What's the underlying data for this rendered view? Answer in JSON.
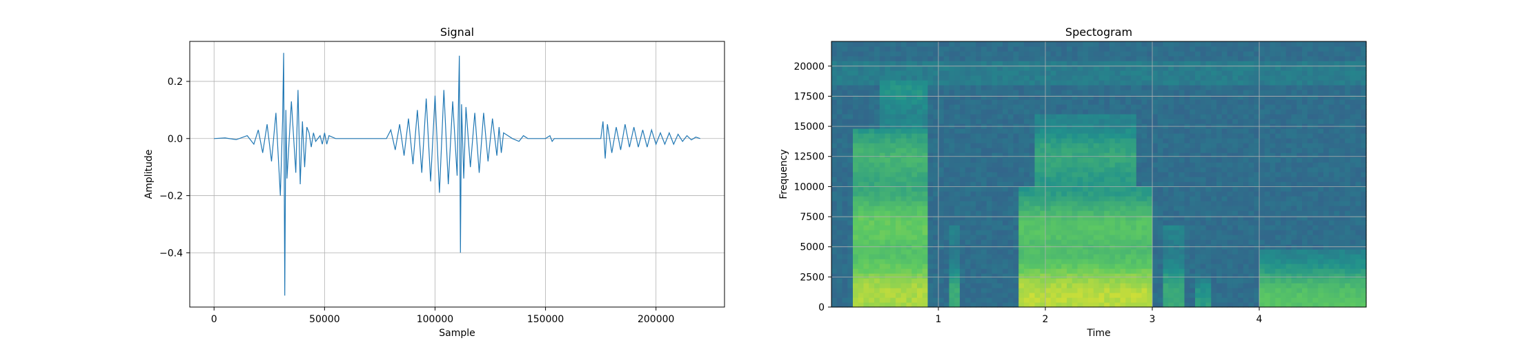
{
  "colors": {
    "signal": "#1f77b4",
    "grid": "#b0b0b0",
    "axes": "#000000"
  },
  "chart_data": [
    {
      "type": "line",
      "title": "Signal",
      "xlabel": "Sample",
      "ylabel": "Amplitude",
      "xlim": [
        -11000,
        231000
      ],
      "ylim": [
        -0.59,
        0.34
      ],
      "xticks": [
        0,
        50000,
        100000,
        150000,
        200000
      ],
      "xtick_labels": [
        "0",
        "50000",
        "100000",
        "150000",
        "200000"
      ],
      "yticks": [
        0.2,
        0.0,
        -0.2,
        -0.4
      ],
      "ytick_labels": [
        "0.2",
        "0.0",
        "−0.2",
        "−0.4"
      ],
      "grid": true,
      "series": [
        {
          "x": [
            0,
            5000,
            10000,
            15000,
            18000,
            20000,
            22000,
            24000,
            26000,
            28000,
            30000,
            31000,
            31500,
            32000,
            32500,
            33000,
            35000,
            37000,
            38000,
            39000,
            40000,
            41000,
            42000,
            43000,
            44000,
            45000,
            46000,
            47000,
            48000,
            49000,
            50000,
            51000,
            52000,
            55000,
            70000,
            78000,
            80000,
            82000,
            84000,
            86000,
            88000,
            90000,
            92000,
            94000,
            96000,
            98000,
            100000,
            102000,
            104000,
            106000,
            108000,
            110000,
            111000,
            111500,
            112000,
            113000,
            114000,
            116000,
            118000,
            120000,
            122000,
            124000,
            126000,
            128000,
            129000,
            130000,
            131000,
            135000,
            138000,
            140000,
            142000,
            150000,
            152000,
            153000,
            154000,
            160000,
            175000,
            176000,
            177000,
            178000,
            180000,
            182000,
            184000,
            186000,
            188000,
            190000,
            192000,
            194000,
            196000,
            198000,
            200000,
            202000,
            204000,
            206000,
            208000,
            210000,
            212000,
            214000,
            216000,
            218000,
            220000
          ],
          "y": [
            0.0,
            0.002,
            -0.004,
            0.01,
            -0.02,
            0.03,
            -0.05,
            0.05,
            -0.08,
            0.09,
            -0.2,
            0.06,
            0.3,
            -0.55,
            0.1,
            -0.14,
            0.13,
            -0.12,
            0.17,
            -0.16,
            0.06,
            -0.1,
            0.04,
            0.02,
            -0.03,
            0.02,
            -0.01,
            0.0,
            0.01,
            -0.02,
            0.02,
            -0.02,
            0.01,
            0.0,
            0.0,
            0.0,
            0.03,
            -0.04,
            0.05,
            -0.06,
            0.07,
            -0.09,
            0.1,
            -0.12,
            0.14,
            -0.15,
            0.15,
            -0.19,
            0.17,
            -0.16,
            0.13,
            -0.13,
            0.29,
            -0.4,
            0.12,
            -0.14,
            0.11,
            -0.1,
            0.09,
            -0.12,
            0.09,
            -0.08,
            0.07,
            -0.06,
            0.04,
            -0.05,
            0.02,
            0.0,
            -0.01,
            0.01,
            0.0,
            0.0,
            0.01,
            -0.01,
            0.0,
            0.0,
            0.0,
            0.06,
            -0.07,
            0.05,
            -0.05,
            0.04,
            -0.04,
            0.05,
            -0.03,
            0.04,
            -0.03,
            0.03,
            -0.03,
            0.03,
            -0.02,
            0.02,
            -0.02,
            0.02,
            -0.02,
            0.015,
            -0.01,
            0.01,
            -0.005,
            0.005,
            0.0
          ]
        }
      ]
    },
    {
      "type": "heatmap",
      "title": "Spectogram",
      "xlabel": "Time",
      "ylabel": "Frequency",
      "xlim": [
        0,
        5.0
      ],
      "ylim": [
        0,
        22050
      ],
      "xticks": [
        1,
        2,
        3,
        4
      ],
      "xtick_labels": [
        "1",
        "2",
        "3",
        "4"
      ],
      "yticks": [
        0,
        2500,
        5000,
        7500,
        10000,
        12500,
        15000,
        17500,
        20000
      ],
      "ytick_labels": [
        "0",
        "2500",
        "5000",
        "7500",
        "10000",
        "12500",
        "15000",
        "17500",
        "20000"
      ],
      "grid": true,
      "colormap": "viridis",
      "energy_regions": [
        {
          "t0": 0.2,
          "t1": 0.92,
          "f_max": 15000,
          "level": 0.85
        },
        {
          "t0": 0.45,
          "t1": 0.92,
          "f_max": 19000,
          "level": 0.7
        },
        {
          "t0": 1.12,
          "t1": 1.2,
          "f_max": 7000,
          "level": 0.6
        },
        {
          "t0": 1.75,
          "t1": 3.0,
          "f_max": 10000,
          "level": 0.88
        },
        {
          "t0": 1.92,
          "t1": 2.85,
          "f_max": 16000,
          "level": 0.75
        },
        {
          "t0": 3.1,
          "t1": 3.3,
          "f_max": 7000,
          "level": 0.6
        },
        {
          "t0": 3.4,
          "t1": 3.55,
          "f_max": 3000,
          "level": 0.55
        },
        {
          "t0": 4.0,
          "t1": 5.0,
          "f_max": 5000,
          "level": 0.72
        }
      ]
    }
  ]
}
